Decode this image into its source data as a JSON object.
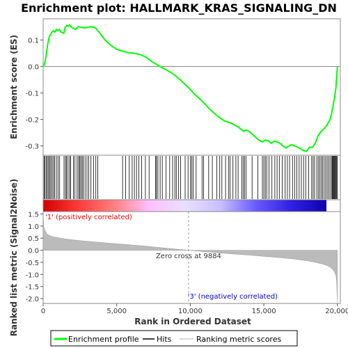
{
  "chart_data": {
    "type": "line",
    "title": "Enrichment plot: HALLMARK_KRAS_SIGNALING_DN",
    "xlabel": "Rank in Ordered Dataset",
    "xlim": [
      0,
      20200
    ],
    "x_ticks": [
      "0",
      "5,000",
      "10,000",
      "15,000",
      "20,000"
    ],
    "x_tick_values": [
      0,
      5000,
      10000,
      15000,
      20000
    ],
    "es_panel": {
      "ylabel": "Enrichment score (ES)",
      "ylim": [
        -0.335,
        0.18
      ],
      "y_ticks": [
        "0.1",
        "0.0",
        "-0.1",
        "-0.2",
        "-0.3"
      ],
      "y_tick_values": [
        0.1,
        0.0,
        -0.1,
        -0.2,
        -0.3
      ],
      "color": "#00ff00",
      "x": [
        0,
        100,
        200,
        300,
        400,
        500,
        600,
        700,
        800,
        900,
        1000,
        1100,
        1200,
        1300,
        1400,
        1500,
        1600,
        1700,
        1800,
        1900,
        2000,
        2200,
        2400,
        2600,
        2800,
        3000,
        3200,
        3500,
        3800,
        4200,
        4600,
        5000,
        5400,
        5800,
        6200,
        6600,
        7000,
        7400,
        7800,
        8200,
        8600,
        9000,
        9400,
        9884,
        10300,
        10800,
        11300,
        11800,
        12300,
        12800,
        13300,
        13600,
        13800,
        14000,
        14300,
        14600,
        14900,
        15100,
        15300,
        15500,
        15700,
        15900,
        16100,
        16300,
        16500,
        16700,
        16900,
        17100,
        17300,
        17500,
        17700,
        17900,
        18100,
        18300,
        18500,
        18700,
        18900,
        19100,
        19300,
        19500,
        19600,
        19700,
        19800,
        19900,
        19950,
        20000
      ],
      "y": [
        0.0,
        0.01,
        0.04,
        0.08,
        0.11,
        0.12,
        0.13,
        0.135,
        0.13,
        0.14,
        0.135,
        0.14,
        0.13,
        0.128,
        0.125,
        0.148,
        0.155,
        0.152,
        0.157,
        0.15,
        0.145,
        0.14,
        0.15,
        0.148,
        0.145,
        0.148,
        0.15,
        0.148,
        0.13,
        0.1,
        0.08,
        0.065,
        0.058,
        0.052,
        0.05,
        0.045,
        0.035,
        0.018,
        0.005,
        -0.008,
        -0.02,
        -0.035,
        -0.055,
        -0.08,
        -0.105,
        -0.13,
        -0.16,
        -0.185,
        -0.205,
        -0.215,
        -0.23,
        -0.245,
        -0.24,
        -0.245,
        -0.26,
        -0.275,
        -0.285,
        -0.278,
        -0.28,
        -0.29,
        -0.282,
        -0.285,
        -0.29,
        -0.3,
        -0.308,
        -0.3,
        -0.295,
        -0.3,
        -0.305,
        -0.31,
        -0.318,
        -0.32,
        -0.305,
        -0.305,
        -0.29,
        -0.26,
        -0.245,
        -0.235,
        -0.22,
        -0.2,
        -0.18,
        -0.15,
        -0.12,
        -0.08,
        -0.04,
        0.0
      ]
    },
    "hits": [
      60,
      130,
      210,
      290,
      370,
      440,
      520,
      610,
      700,
      780,
      900,
      1010,
      1120,
      1420,
      1520,
      1590,
      1690,
      1800,
      1870,
      2060,
      2160,
      2310,
      2410,
      2490,
      2560,
      2650,
      2730,
      2850,
      2980,
      3100,
      3250,
      3420,
      3580,
      3720,
      5400,
      5600,
      5850,
      6050,
      6200,
      6350,
      6500,
      6700,
      6950,
      7200,
      7650,
      7700,
      7800,
      7950,
      8100,
      8350,
      8600,
      8800,
      8950,
      9050,
      9200,
      9350,
      9650,
      9850,
      10000,
      10100,
      10200,
      10400,
      10800,
      10900,
      11250,
      11500,
      11800,
      12000,
      12150,
      12400,
      12600,
      12700,
      12900,
      13100,
      13250,
      13500,
      13600,
      13700,
      13800,
      14200,
      14600,
      14900,
      15000,
      15100,
      15200,
      15350,
      15550,
      15750,
      15900,
      16050,
      16250,
      16450,
      16600,
      16750,
      16950,
      17100,
      17250,
      17400,
      17550,
      17700,
      17850,
      18050,
      18250,
      18350,
      18450,
      18600,
      18700,
      18800,
      18900,
      19000,
      19100,
      19200,
      19300,
      19400,
      19500,
      19600,
      19650,
      19700,
      19750,
      19800,
      19850,
      19900,
      19950,
      20000
    ],
    "rank_metric_panel": {
      "ylabel": "Ranked list metric (Signal2Noise)",
      "ylim": [
        -2.2,
        1.6
      ],
      "y_ticks": [
        "1.5",
        "1.0",
        "0.5",
        "0.0",
        "-0.5",
        "-1.0",
        "-1.5",
        "-2.0"
      ],
      "y_tick_values": [
        1.5,
        1.0,
        0.5,
        0.0,
        -0.5,
        -1.0,
        -1.5,
        -2.0
      ],
      "x": [
        0,
        50,
        150,
        300,
        600,
        1000,
        1500,
        2000,
        3000,
        4000,
        5000,
        6000,
        7000,
        8000,
        9000,
        9884,
        11000,
        12000,
        13000,
        14000,
        15000,
        16000,
        17000,
        17500,
        18000,
        18500,
        19000,
        19300,
        19500,
        19700,
        19800,
        19900,
        19950,
        19980,
        20000
      ],
      "values": [
        1.5,
        0.95,
        0.78,
        0.65,
        0.57,
        0.52,
        0.47,
        0.43,
        0.37,
        0.32,
        0.27,
        0.22,
        0.17,
        0.11,
        0.05,
        0.0,
        -0.06,
        -0.11,
        -0.16,
        -0.2,
        -0.25,
        -0.3,
        -0.36,
        -0.4,
        -0.44,
        -0.5,
        -0.57,
        -0.63,
        -0.7,
        -0.8,
        -0.9,
        -1.05,
        -1.3,
        -1.8,
        -2.15
      ],
      "zero_cross_label": "Zero cross at 9884",
      "zero_cross": 9884,
      "positive_label": "'1' (positively correlated)",
      "negative_label": "'3' (negatively correlated)",
      "positive_label_color": "#ff0000",
      "negative_label_color": "#0000cc",
      "fill_color": "#bbbbbb"
    },
    "heat_bar": {
      "colors": [
        "#d40000",
        "#ff3b3b",
        "#ff8080",
        "#ffc0ff",
        "#e8e0ff",
        "#c8c0ff",
        "#6a5aff",
        "#3020e0",
        "#1000b0"
      ]
    },
    "legend": {
      "position": "bottom",
      "items": [
        {
          "label": "Enrichment profile",
          "color": "#00ff00"
        },
        {
          "label": "Hits",
          "color": "#000000"
        },
        {
          "label": "Ranking metric scores",
          "color": "#cccccc"
        }
      ]
    }
  }
}
